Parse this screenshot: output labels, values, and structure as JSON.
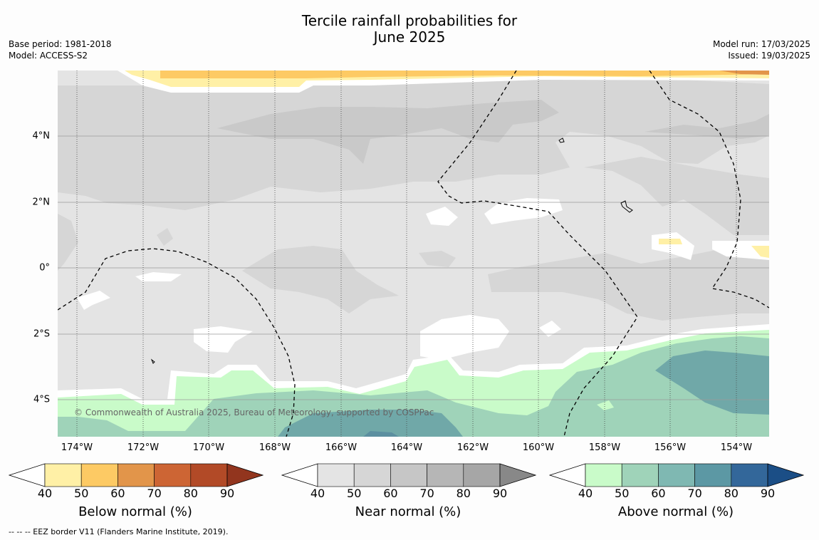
{
  "title_line1": "Tercile rainfall probabilities for",
  "title_line2": "June 2025",
  "base_period": "Base period: 1981-2018",
  "model": "Model: ACCESS-S2",
  "model_run": "Model run: 17/03/2025",
  "issued": "Issued: 19/03/2025",
  "copyright": "© Commonwealth of Australia 2025, Bureau of Meteorology, supported by COSPPac",
  "footer": "--  --  -- EEZ border V11 (Flanders Marine Institute, 2019).",
  "lon_ticks": [
    "174°W",
    "172°W",
    "170°W",
    "168°W",
    "166°W",
    "164°W",
    "162°W",
    "160°W",
    "158°W",
    "156°W",
    "154°W"
  ],
  "lat_ticks": [
    "4°N",
    "2°N",
    "0°",
    "2°S",
    "4°S"
  ],
  "colorbars": [
    {
      "label": "Below normal (%)",
      "ticks": [
        "40",
        "50",
        "60",
        "70",
        "80",
        "90"
      ],
      "colors": [
        "#fff0a6",
        "#fdca64",
        "#e2954a",
        "#cd6534",
        "#b24a27",
        "#92351e"
      ]
    },
    {
      "label": "Near normal (%)",
      "ticks": [
        "40",
        "50",
        "60",
        "70",
        "80",
        "90"
      ],
      "colors": [
        "#e4e4e4",
        "#d6d6d6",
        "#c6c6c6",
        "#b6b6b6",
        "#a6a6a6",
        "#888888"
      ]
    },
    {
      "label": "Above normal (%)",
      "ticks": [
        "40",
        "50",
        "60",
        "70",
        "80",
        "90"
      ],
      "colors": [
        "#c9fbc9",
        "#9fd3b9",
        "#7fb8b2",
        "#5c98a4",
        "#33679a",
        "#1b4e86"
      ]
    }
  ],
  "colors": {
    "near_light": "#e4e4e4",
    "near_mid": "#d6d6d6",
    "near_dark": "#c9c9c9",
    "above_light": "#c9fbc9",
    "above_mid": "#9fd3b9",
    "above_dark": "#70a8a8",
    "above_deep": "#5c8fa0",
    "below_light": "#fff0a6",
    "below_mid": "#fdca64",
    "below_dark": "#e2954a"
  }
}
